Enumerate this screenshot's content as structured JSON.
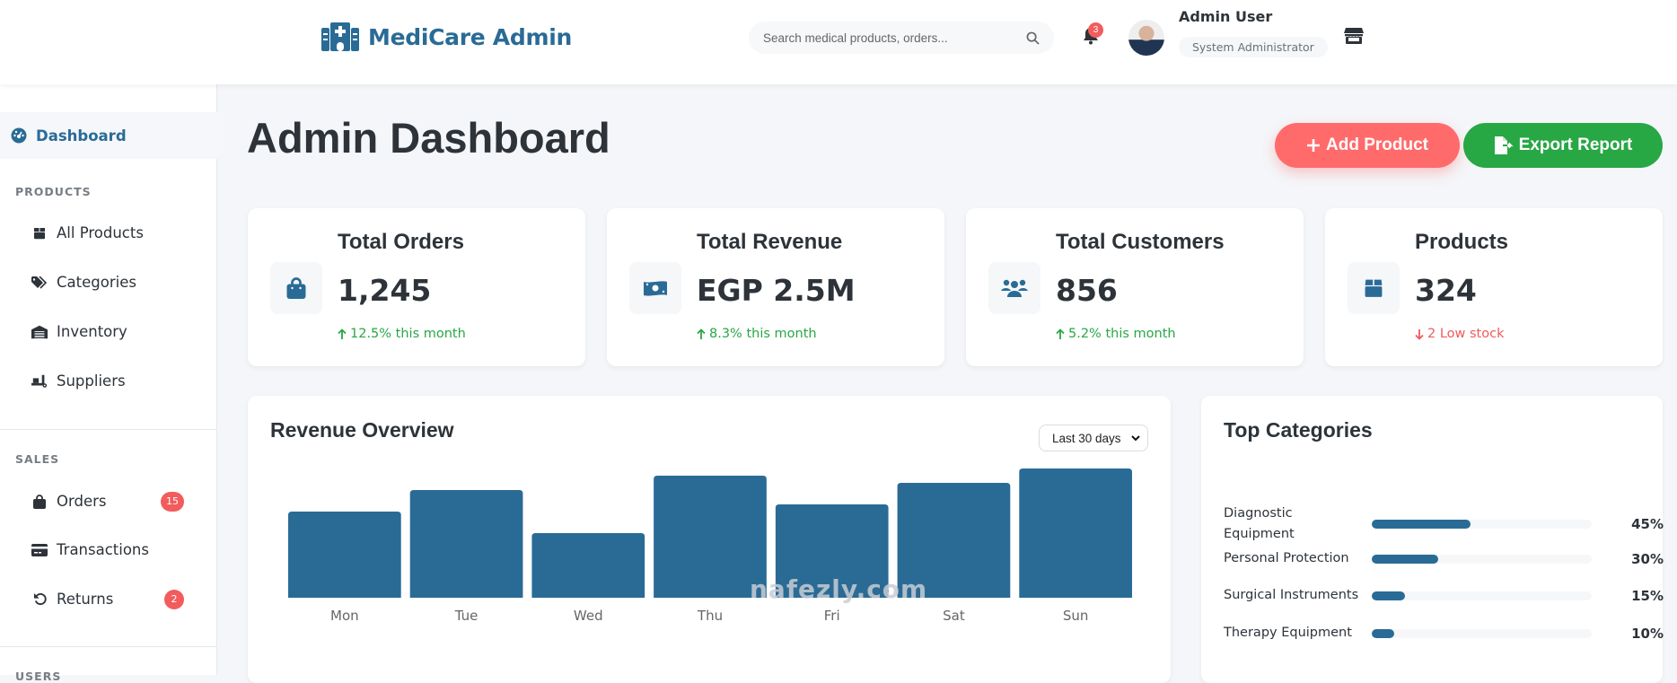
{
  "header": {
    "app_name": "MediCare Admin",
    "search_placeholder": "Search medical products, orders...",
    "notification_count": "3",
    "user_name": "Admin User",
    "user_role": "System Administrator"
  },
  "sidebar": {
    "active_item": "Dashboard",
    "sections": [
      {
        "title": "PRODUCTS",
        "items": [
          {
            "label": "All Products",
            "icon": "box-icon"
          },
          {
            "label": "Categories",
            "icon": "tags-icon"
          },
          {
            "label": "Inventory",
            "icon": "warehouse-icon"
          },
          {
            "label": "Suppliers",
            "icon": "dolly-icon"
          }
        ]
      },
      {
        "title": "SALES",
        "items": [
          {
            "label": "Orders",
            "icon": "shopping-bag-icon",
            "badge": "15"
          },
          {
            "label": "Transactions",
            "icon": "credit-card-icon"
          },
          {
            "label": "Returns",
            "icon": "undo-icon",
            "badge": "2"
          }
        ]
      },
      {
        "title": "USERS"
      }
    ]
  },
  "main": {
    "title": "Admin Dashboard",
    "add_product_label": "Add Product",
    "export_report_label": "Export Report",
    "stats": [
      {
        "title": "Total Orders",
        "value": "1,245",
        "trend": "12.5% this month",
        "direction": "up",
        "icon": "shopping-bag-icon"
      },
      {
        "title": "Total Revenue",
        "value": "EGP 2.5M",
        "trend": "8.3% this month",
        "direction": "up",
        "icon": "money-bill-icon"
      },
      {
        "title": "Total Customers",
        "value": "856",
        "trend": "5.2% this month",
        "direction": "up",
        "icon": "users-icon"
      },
      {
        "title": "Products",
        "value": "324",
        "trend": "2 Low stock",
        "direction": "down",
        "icon": "box-icon"
      }
    ],
    "revenue": {
      "title": "Revenue Overview",
      "range_selected": "Last 30 days"
    },
    "top_categories": {
      "title": "Top Categories",
      "items": [
        {
          "name": "Diagnostic Equipment",
          "percent": 45,
          "label": "45%"
        },
        {
          "name": "Personal Protection",
          "percent": 30,
          "label": "30%"
        },
        {
          "name": "Surgical Instruments",
          "percent": 15,
          "label": "15%"
        },
        {
          "name": "Therapy Equipment",
          "percent": 10,
          "label": "10%"
        }
      ]
    }
  },
  "colors": {
    "brand": "#2a6b96",
    "danger": "#ff6b6b",
    "success": "#28a745"
  },
  "watermark": "nafezly.com",
  "chart_data": {
    "type": "bar",
    "title": "Revenue Overview",
    "categories": [
      "Mon",
      "Tue",
      "Wed",
      "Thu",
      "Fri",
      "Sat",
      "Sun"
    ],
    "values": [
      60,
      75,
      45,
      85,
      65,
      80,
      90
    ],
    "xlabel": "",
    "ylabel": "",
    "ylim": [
      0,
      100
    ],
    "grid": false,
    "legend": "none"
  }
}
